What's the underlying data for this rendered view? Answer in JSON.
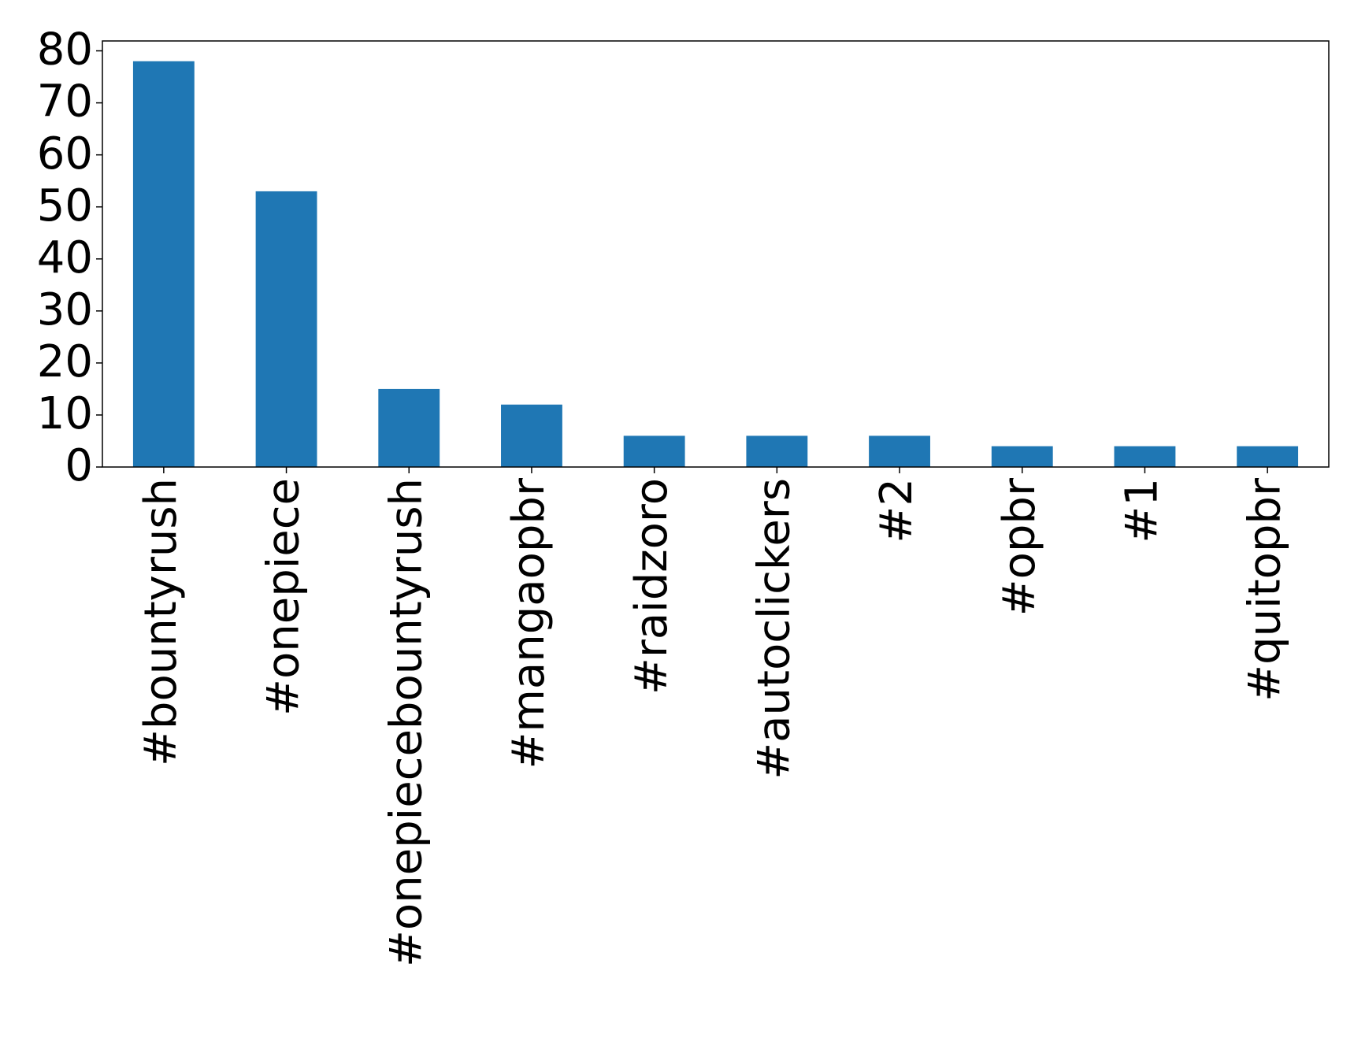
{
  "chart_data": {
    "type": "bar",
    "categories": [
      "#bountyrush",
      "#onepiece",
      "#onepiecebountyrush",
      "#mangaopbr",
      "#raidzoro",
      "#autoclickers",
      "#2",
      "#opbr",
      "#1",
      "#quitopbr"
    ],
    "values": [
      78,
      53,
      15,
      12,
      6,
      6,
      6,
      4,
      4,
      4
    ],
    "color": "#1f77b4",
    "ylim": [
      0,
      81.9
    ],
    "yticks": [
      0,
      10,
      20,
      30,
      40,
      50,
      60,
      70,
      80
    ],
    "grid": false
  }
}
